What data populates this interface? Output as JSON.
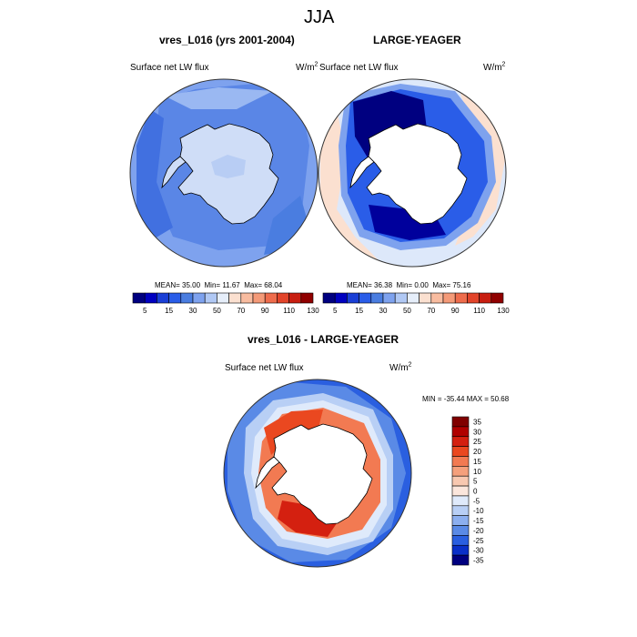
{
  "figure": {
    "season_title": "JJA",
    "colors": {
      "land_fill": "#ffffff",
      "coast_line": "#000000",
      "outline": "#333333"
    }
  },
  "panels": {
    "model": {
      "title": "vres_L016 (yrs 2001-2004)",
      "variable": "Surface net LW flux",
      "units": "W/m",
      "units_sup": "2",
      "stats": {
        "mean_label": "MEAN=",
        "mean": "35.00",
        "min_label": "Min=",
        "min": "11.67",
        "max_label": "Max=",
        "max": "68.04"
      }
    },
    "obs": {
      "title": "LARGE-YEAGER",
      "variable": "Surface net LW flux",
      "units": "W/m",
      "units_sup": "2",
      "stats": {
        "mean_label": "MEAN=",
        "mean": "36.38",
        "min_label": "Min=",
        "min": "0.00",
        "max_label": "Max=",
        "max": "75.16"
      }
    },
    "diff": {
      "title": "vres_L016 - LARGE-YEAGER",
      "variable": "Surface net LW flux",
      "units": "W/m",
      "units_sup": "2",
      "minmax": "MIN = -35.44 MAX =  50.68"
    }
  },
  "colorbars": {
    "abs": {
      "colors": [
        "#000080",
        "#0000c0",
        "#1a3fd6",
        "#2a5de8",
        "#4a7de0",
        "#7ea2ee",
        "#b0c8f4",
        "#e6eefa",
        "#fbe0d0",
        "#f8bca0",
        "#f49a78",
        "#ee6c4c",
        "#e2442a",
        "#c81e10",
        "#900000"
      ],
      "tick_labels": [
        "5",
        "15",
        "30",
        "50",
        "70",
        "90",
        "110",
        "130"
      ]
    },
    "diff": {
      "colors": [
        "#800000",
        "#b00000",
        "#d42010",
        "#ea4820",
        "#f27a52",
        "#f5a07c",
        "#f8c8b0",
        "#fbe6dc",
        "#dfeafb",
        "#b8cff5",
        "#8cafef",
        "#5a8ae6",
        "#2a5fe0",
        "#0a30c8",
        "#000080"
      ],
      "tick_labels": [
        "35",
        "30",
        "25",
        "20",
        "15",
        "10",
        "5",
        "0",
        "-5",
        "-10",
        "-15",
        "-20",
        "-25",
        "-30",
        "-35"
      ]
    }
  }
}
